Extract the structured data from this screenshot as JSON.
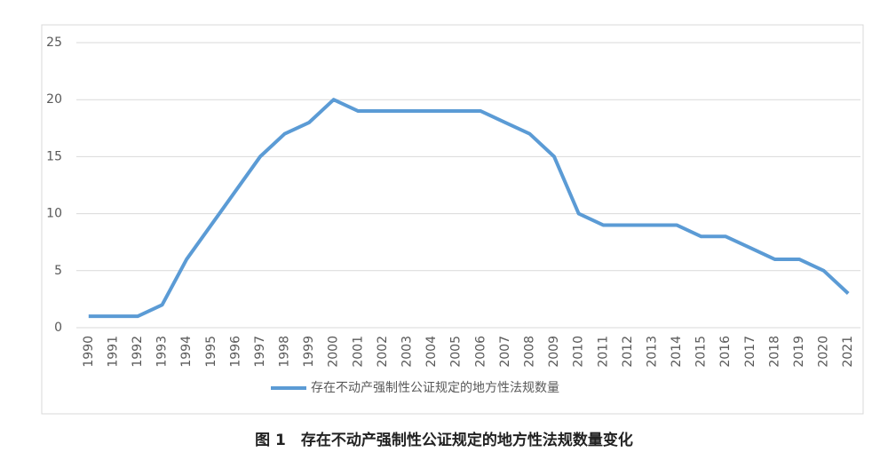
{
  "chart_data": {
    "type": "line",
    "caption": "图 1　存在不动产强制性公证规定的地方性法规数量变化",
    "categories": [
      "1990",
      "1991",
      "1992",
      "1993",
      "1994",
      "1995",
      "1996",
      "1997",
      "1998",
      "1999",
      "2000",
      "2001",
      "2002",
      "2003",
      "2004",
      "2005",
      "2006",
      "2007",
      "2008",
      "2009",
      "2010",
      "2011",
      "2012",
      "2013",
      "2014",
      "2015",
      "2016",
      "2017",
      "2018",
      "2019",
      "2020",
      "2021"
    ],
    "series": [
      {
        "name": "存在不动产强制性公证规定的地方性法规数量",
        "color": "#5b9bd5",
        "values": [
          1,
          1,
          1,
          2,
          6,
          9,
          12,
          15,
          17,
          18,
          20,
          19,
          19,
          19,
          19,
          19,
          19,
          18,
          17,
          15,
          10,
          9,
          9,
          9,
          9,
          8,
          8,
          7,
          6,
          6,
          5,
          3
        ]
      }
    ],
    "ylim": [
      0,
      25
    ],
    "yticks": [
      0,
      5,
      10,
      15,
      20,
      25
    ],
    "grid": true
  }
}
